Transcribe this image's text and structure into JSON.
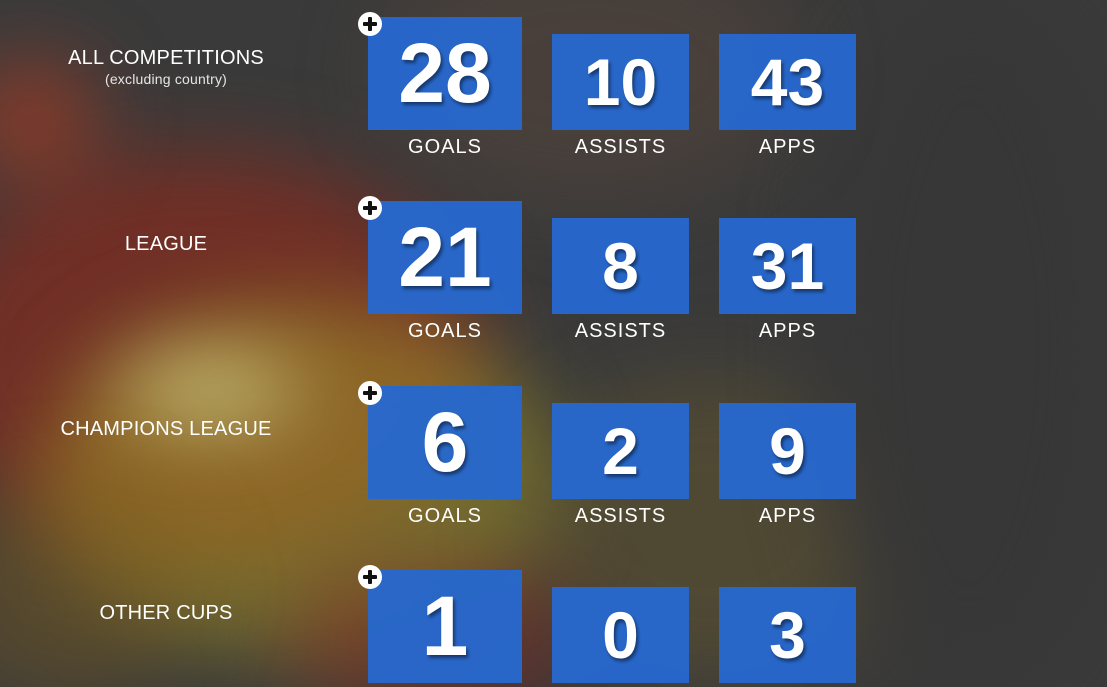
{
  "icons": {
    "expand": "plus-circle-icon"
  },
  "colors": {
    "stat_box": "#2668CE",
    "background": "#3a3a3a",
    "text": "#ffffff"
  },
  "rows": [
    {
      "label": "ALL COMPETITIONS",
      "sublabel": "(excluding country)",
      "goals": {
        "value": "28",
        "label": "GOALS"
      },
      "assists": {
        "value": "10",
        "label": "ASSISTS"
      },
      "apps": {
        "value": "43",
        "label": "APPS"
      }
    },
    {
      "label": "LEAGUE",
      "goals": {
        "value": "21",
        "label": "GOALS"
      },
      "assists": {
        "value": "8",
        "label": "ASSISTS"
      },
      "apps": {
        "value": "31",
        "label": "APPS"
      }
    },
    {
      "label": "CHAMPIONS LEAGUE",
      "goals": {
        "value": "6",
        "label": "GOALS"
      },
      "assists": {
        "value": "2",
        "label": "ASSISTS"
      },
      "apps": {
        "value": "9",
        "label": "APPS"
      }
    },
    {
      "label": "OTHER CUPS",
      "goals": {
        "value": "1"
      },
      "assists": {
        "value": "0"
      },
      "apps": {
        "value": "3"
      }
    }
  ]
}
